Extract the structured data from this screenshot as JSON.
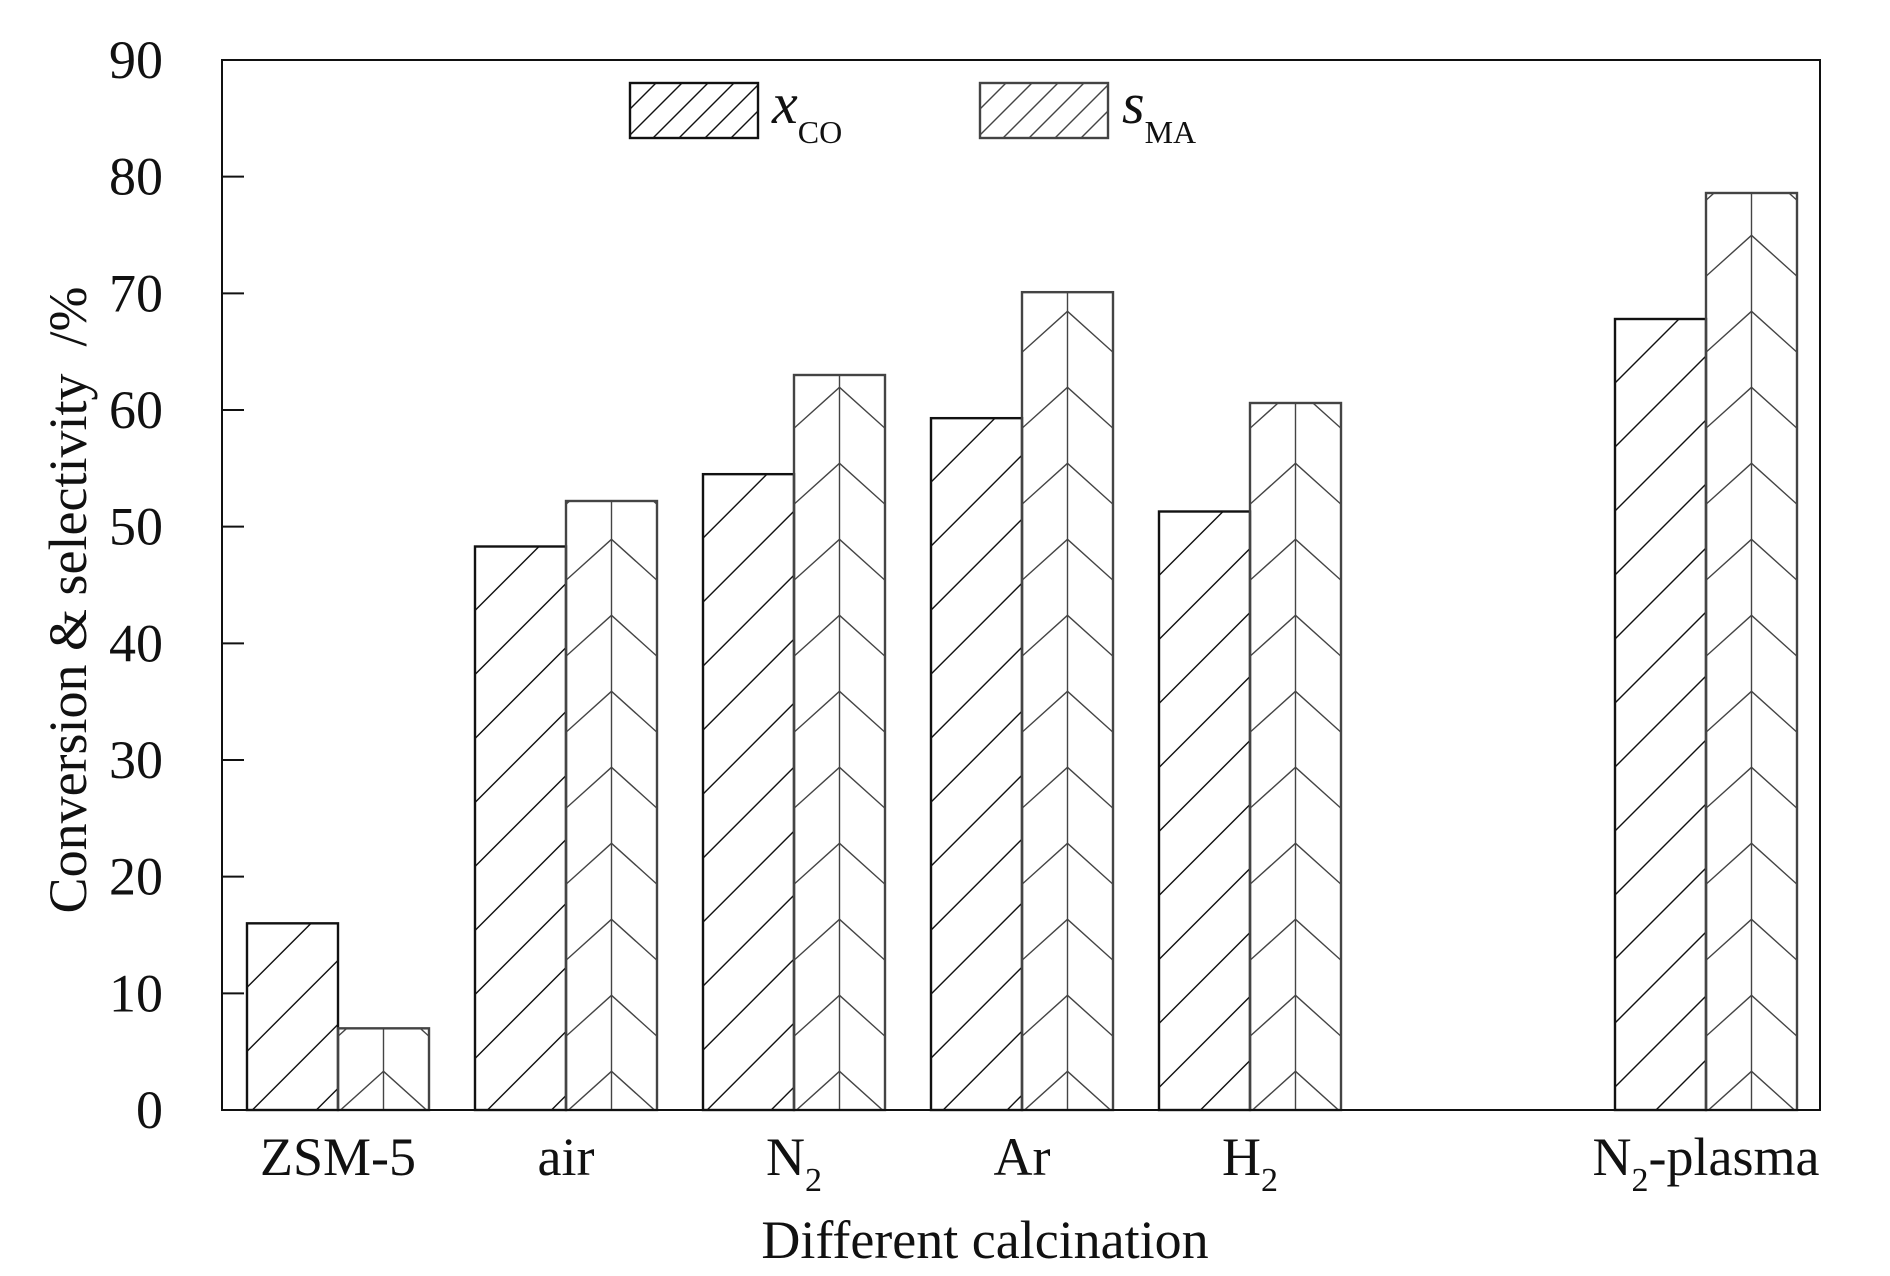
{
  "chart_data": {
    "type": "bar",
    "categories": [
      {
        "main": "ZSM-5",
        "sub": "",
        "suffix": ""
      },
      {
        "main": "air",
        "sub": "",
        "suffix": ""
      },
      {
        "main": "N",
        "sub": "2",
        "suffix": ""
      },
      {
        "main": "Ar",
        "sub": "",
        "suffix": ""
      },
      {
        "main": "H",
        "sub": "2",
        "suffix": ""
      },
      {
        "main": "N",
        "sub": "2",
        "suffix": "-plasma"
      }
    ],
    "category_positions": [
      0,
      1,
      2,
      3,
      4,
      6
    ],
    "series": [
      {
        "name": "x",
        "name_sub": "CO",
        "values": [
          16,
          48.3,
          54.5,
          59.3,
          51.3,
          67.8
        ],
        "color": "#111111",
        "hatch": "forward"
      },
      {
        "name": "s",
        "name_sub": "MA",
        "values": [
          7,
          52.2,
          63,
          70.1,
          60.6,
          78.6
        ],
        "color": "#444444",
        "hatch": "chevron"
      }
    ],
    "title": "",
    "xlabel": "Different calcination",
    "ylabel": "Conversion & selectivity  /%",
    "ylim": [
      0,
      90
    ],
    "yticks": [
      0,
      10,
      20,
      30,
      40,
      50,
      60,
      70,
      80,
      90
    ],
    "grid": false,
    "legend_position": "top-center"
  }
}
